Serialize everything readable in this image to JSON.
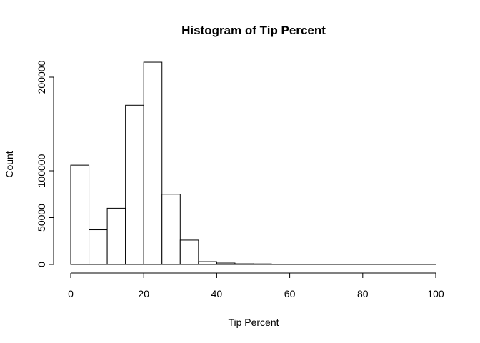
{
  "chart_data": {
    "type": "bar",
    "subtype": "histogram",
    "title": "Histogram of Tip Percent",
    "xlabel": "Tip Percent",
    "ylabel": "Count",
    "xlim": [
      0,
      100
    ],
    "ylim": [
      0,
      200000
    ],
    "xticks": [
      0,
      20,
      40,
      60,
      80,
      100
    ],
    "yticks": [
      0,
      50000,
      100000,
      150000,
      200000
    ],
    "ytick_labels": [
      "0",
      "50000",
      "100000",
      "",
      "200000"
    ],
    "bin_width": 5,
    "bins": [
      {
        "x0": 0,
        "x1": 5,
        "count": 106000
      },
      {
        "x0": 5,
        "x1": 10,
        "count": 37000
      },
      {
        "x0": 10,
        "x1": 15,
        "count": 60000
      },
      {
        "x0": 15,
        "x1": 20,
        "count": 170000
      },
      {
        "x0": 20,
        "x1": 25,
        "count": 216000
      },
      {
        "x0": 25,
        "x1": 30,
        "count": 75000
      },
      {
        "x0": 30,
        "x1": 35,
        "count": 26000
      },
      {
        "x0": 35,
        "x1": 40,
        "count": 3000
      },
      {
        "x0": 40,
        "x1": 45,
        "count": 1500
      },
      {
        "x0": 45,
        "x1": 50,
        "count": 700
      },
      {
        "x0": 50,
        "x1": 55,
        "count": 600
      },
      {
        "x0": 55,
        "x1": 60,
        "count": 200
      },
      {
        "x0": 60,
        "x1": 65,
        "count": 150
      },
      {
        "x0": 65,
        "x1": 70,
        "count": 100
      },
      {
        "x0": 70,
        "x1": 75,
        "count": 80
      },
      {
        "x0": 75,
        "x1": 80,
        "count": 60
      },
      {
        "x0": 80,
        "x1": 85,
        "count": 50
      },
      {
        "x0": 85,
        "x1": 90,
        "count": 40
      },
      {
        "x0": 90,
        "x1": 95,
        "count": 30
      },
      {
        "x0": 95,
        "x1": 100,
        "count": 30
      }
    ],
    "grid": false,
    "legend": "none"
  }
}
